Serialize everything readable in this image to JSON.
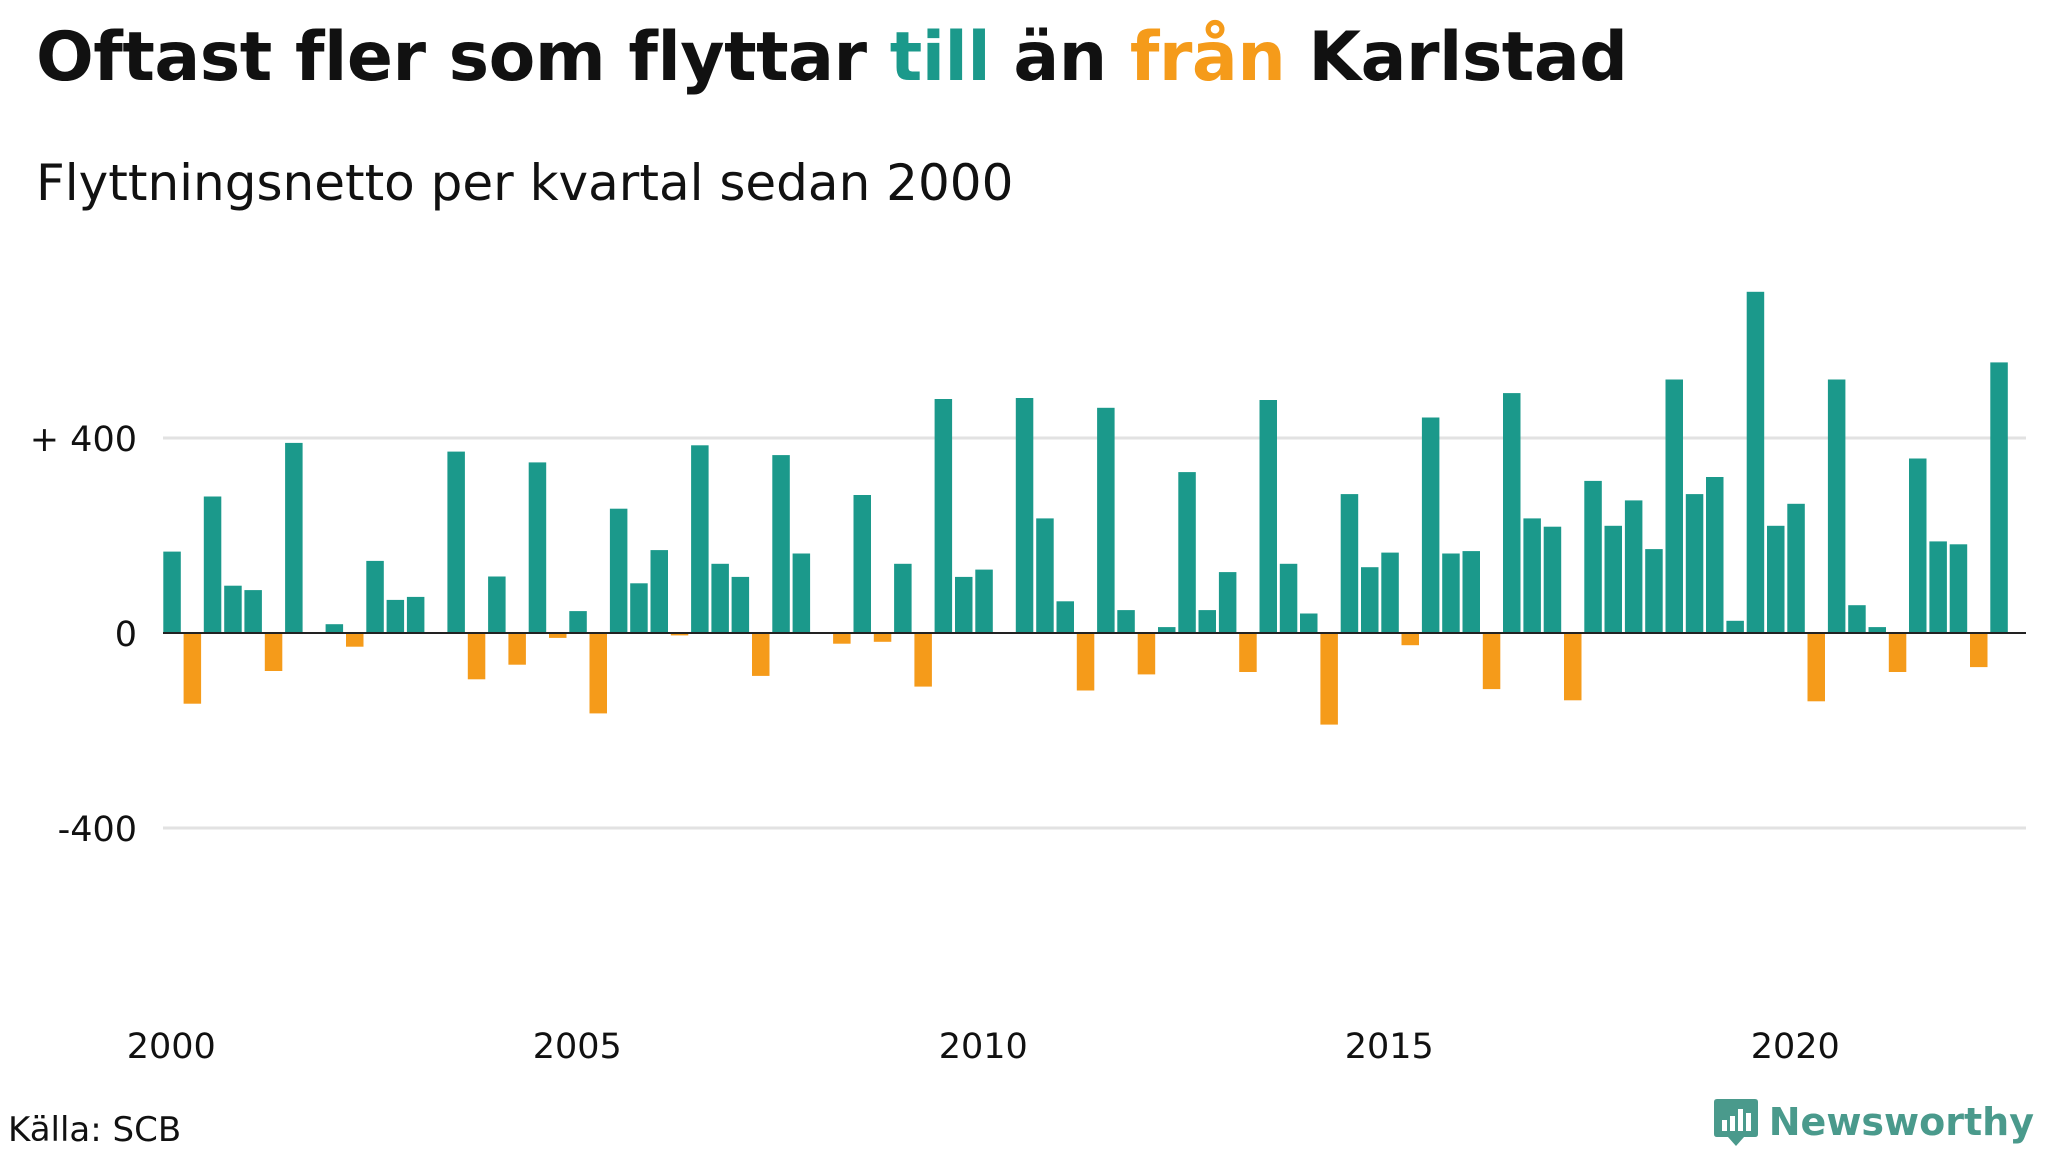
{
  "title": {
    "part1": "Oftast fler som flyttar ",
    "part2": "till",
    "part3": " än ",
    "part4": "från",
    "part5": " Karlstad"
  },
  "subtitle": "Flyttningsnetto per kvartal sedan 2000",
  "source": "Källa: SCB",
  "brand": {
    "name": "Newsworthy",
    "icon": "newsworthy-logo-icon"
  },
  "colors": {
    "positive": "#1b998b",
    "negative": "#f59b1a",
    "grid": "#e2e2e2",
    "zero_line": "#222222",
    "text": "#111111",
    "brand": "#4a9a8c"
  },
  "chart_data": {
    "type": "bar",
    "title": "Oftast fler som flyttar till än från Karlstad",
    "subtitle": "Flyttningsnetto per kvartal sedan 2000",
    "xlabel": "",
    "ylabel": "",
    "ylim": [
      -660,
      720
    ],
    "xlim": [
      2000,
      2023
    ],
    "y_ticks": [
      {
        "value": 400,
        "label": "+ 400"
      },
      {
        "value": 0,
        "label": "0"
      },
      {
        "value": -400,
        "label": "-400"
      }
    ],
    "x_ticks": [
      {
        "value": 2000,
        "label": "2000"
      },
      {
        "value": 2005,
        "label": "2005"
      },
      {
        "value": 2010,
        "label": "2010"
      },
      {
        "value": 2015,
        "label": "2015"
      },
      {
        "value": 2020,
        "label": "2020"
      }
    ],
    "grid": true,
    "legend": "none",
    "start_year": 2000,
    "values": [
      167,
      -145,
      280,
      97,
      88,
      -78,
      390,
      0,
      18,
      -28,
      148,
      68,
      74,
      0,
      372,
      -95,
      116,
      -65,
      350,
      -10,
      45,
      -165,
      255,
      102,
      170,
      -5,
      385,
      142,
      115,
      -88,
      365,
      163,
      2,
      -22,
      283,
      -18,
      142,
      -110,
      480,
      115,
      130,
      -2,
      482,
      235,
      65,
      -118,
      462,
      47,
      -85,
      12,
      330,
      47,
      125,
      -80,
      478,
      142,
      40,
      -188,
      285,
      135,
      165,
      -25,
      442,
      163,
      168,
      -115,
      492,
      235,
      218,
      -138,
      312,
      220,
      272,
      172,
      520,
      285,
      320,
      25,
      700,
      220,
      265,
      -140,
      520,
      57,
      12,
      -80,
      358,
      188,
      182,
      -70,
      555
    ]
  }
}
